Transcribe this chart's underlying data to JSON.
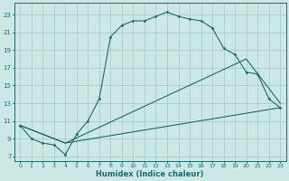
{
  "xlabel": "Humidex (Indice chaleur)",
  "bg_color": "#cce8e4",
  "grid_color": "#aacccc",
  "line_color": "#1a6b6b",
  "xlim": [
    -0.5,
    23.5
  ],
  "ylim": [
    6.5,
    24.3
  ],
  "xticks": [
    0,
    1,
    2,
    3,
    4,
    5,
    6,
    7,
    8,
    9,
    10,
    11,
    12,
    13,
    14,
    15,
    16,
    17,
    18,
    19,
    20,
    21,
    22,
    23
  ],
  "yticks": [
    7,
    9,
    11,
    13,
    15,
    17,
    19,
    21,
    23
  ],
  "line1_x": [
    0,
    1,
    2,
    3,
    4,
    5,
    6,
    7,
    8,
    9,
    10,
    11,
    12,
    13,
    14,
    15,
    16,
    17,
    18,
    19,
    20,
    21,
    22,
    23
  ],
  "line1_y": [
    10.5,
    9.0,
    8.5,
    8.3,
    7.2,
    9.5,
    11.0,
    13.5,
    20.5,
    21.8,
    22.3,
    22.3,
    22.8,
    23.3,
    22.8,
    22.5,
    22.3,
    21.5,
    19.2,
    18.5,
    16.5,
    16.3,
    13.5,
    12.5
  ],
  "line2_x": [
    0,
    4,
    20,
    23
  ],
  "line2_y": [
    10.5,
    8.5,
    18.0,
    13.0
  ],
  "line3_x": [
    0,
    4,
    23
  ],
  "line3_y": [
    10.5,
    8.5,
    12.5
  ]
}
